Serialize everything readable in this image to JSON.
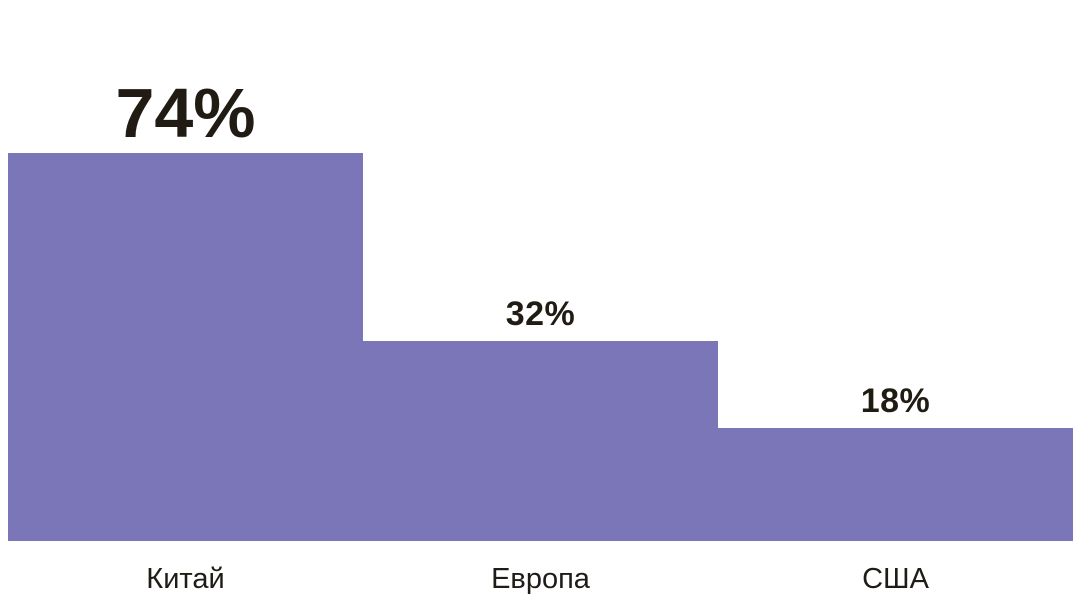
{
  "chart_data": {
    "type": "bar",
    "categories": [
      "Китай",
      "Европа",
      "США"
    ],
    "values": [
      74,
      32,
      18
    ],
    "value_labels": [
      "74%",
      "32%",
      "18%"
    ],
    "title": "",
    "xlabel": "",
    "ylabel": "",
    "ylim": [
      0,
      74
    ],
    "grid": false,
    "legend": false,
    "bar_color": "#7b76b7",
    "value_label_color": "#201b13",
    "category_label_color": "#1f1c16",
    "background_color": "#ffffff"
  }
}
